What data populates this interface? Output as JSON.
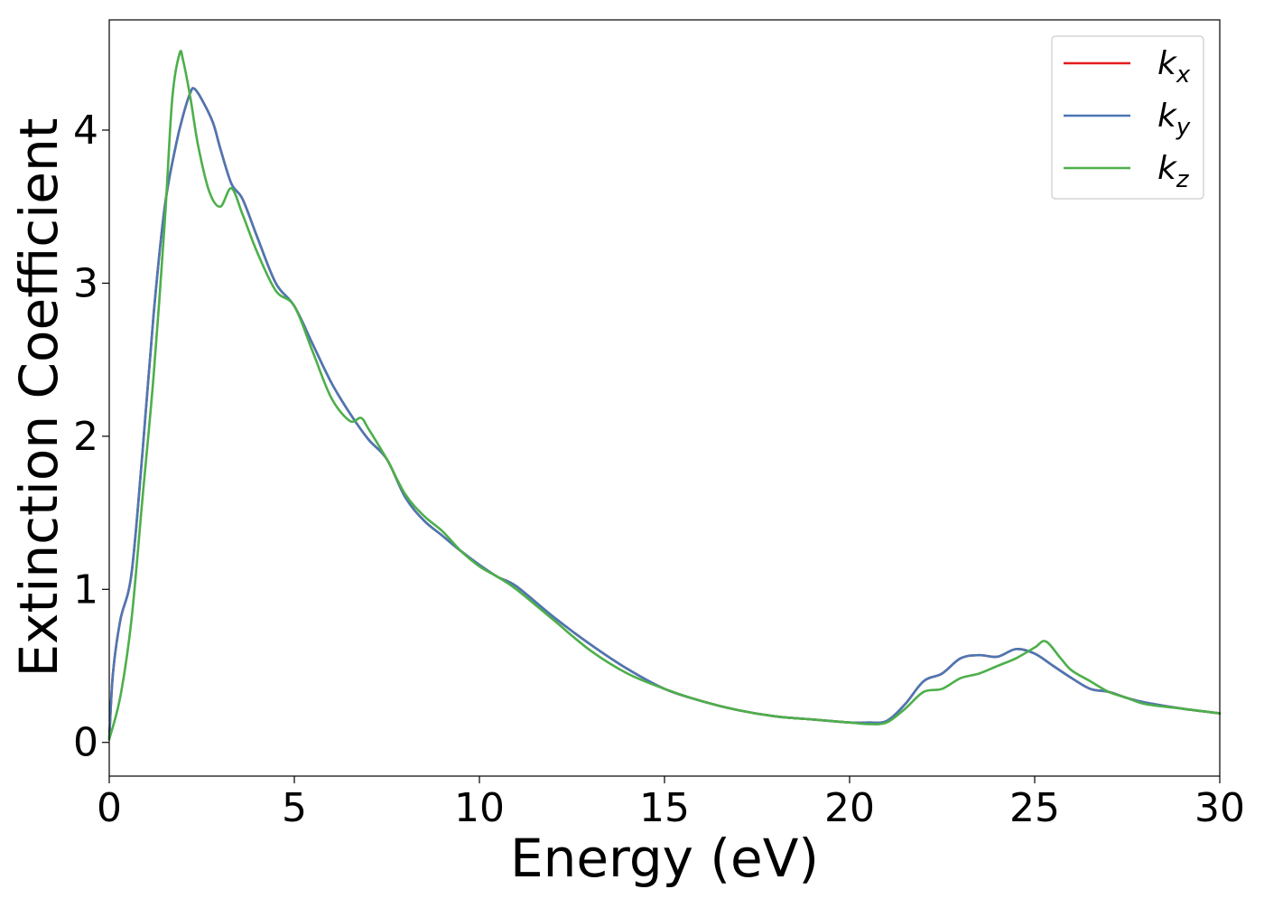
{
  "chart_data": {
    "type": "line",
    "xlabel": "Energy (eV)",
    "ylabel": "Extinction Coefficient",
    "xlim": [
      0,
      30
    ],
    "ylim": [
      -0.22,
      4.72
    ],
    "xticks": [
      0,
      5,
      10,
      15,
      20,
      25,
      30
    ],
    "yticks": [
      0,
      1,
      2,
      3,
      4
    ],
    "grid": false,
    "legend_position": "top-right",
    "series": [
      {
        "name": "k_x",
        "label_base": "k",
        "label_sub": "x",
        "color": "#e41a1c",
        "x": [
          0,
          0.1,
          0.3,
          0.6,
          0.9,
          1.2,
          1.5,
          1.8,
          2.0,
          2.2,
          2.3,
          2.5,
          2.8,
          3.0,
          3.3,
          3.6,
          4.0,
          4.5,
          5.0,
          5.5,
          6.0,
          6.5,
          7.0,
          7.5,
          8.0,
          8.5,
          9.0,
          9.5,
          10.0,
          10.5,
          11.0,
          12.0,
          13.0,
          14.0,
          15.0,
          16.0,
          17.0,
          18.0,
          19.0,
          20.0,
          20.5,
          21.0,
          21.5,
          22.0,
          22.5,
          23.0,
          23.5,
          24.0,
          24.5,
          25.0,
          25.5,
          26.0,
          26.5,
          27.0,
          27.5,
          28.0,
          29.0,
          30.0
        ],
        "y": [
          0.02,
          0.45,
          0.8,
          1.1,
          1.9,
          2.8,
          3.5,
          3.9,
          4.1,
          4.25,
          4.27,
          4.2,
          4.05,
          3.88,
          3.65,
          3.55,
          3.3,
          3.0,
          2.85,
          2.6,
          2.35,
          2.15,
          1.98,
          1.85,
          1.6,
          1.45,
          1.35,
          1.25,
          1.16,
          1.08,
          1.02,
          0.82,
          0.64,
          0.48,
          0.35,
          0.27,
          0.21,
          0.17,
          0.15,
          0.13,
          0.13,
          0.14,
          0.25,
          0.4,
          0.45,
          0.55,
          0.57,
          0.56,
          0.61,
          0.58,
          0.5,
          0.42,
          0.35,
          0.33,
          0.29,
          0.26,
          0.22,
          0.19
        ]
      },
      {
        "name": "k_y",
        "label_base": "k",
        "label_sub": "y",
        "color": "#4a78b4",
        "x": [
          0,
          0.1,
          0.3,
          0.6,
          0.9,
          1.2,
          1.5,
          1.8,
          2.0,
          2.2,
          2.3,
          2.5,
          2.8,
          3.0,
          3.3,
          3.6,
          4.0,
          4.5,
          5.0,
          5.5,
          6.0,
          6.5,
          7.0,
          7.5,
          8.0,
          8.5,
          9.0,
          9.5,
          10.0,
          10.5,
          11.0,
          12.0,
          13.0,
          14.0,
          15.0,
          16.0,
          17.0,
          18.0,
          19.0,
          20.0,
          20.5,
          21.0,
          21.5,
          22.0,
          22.5,
          23.0,
          23.5,
          24.0,
          24.5,
          25.0,
          25.5,
          26.0,
          26.5,
          27.0,
          27.5,
          28.0,
          29.0,
          30.0
        ],
        "y": [
          0.02,
          0.45,
          0.8,
          1.1,
          1.9,
          2.8,
          3.5,
          3.9,
          4.1,
          4.25,
          4.27,
          4.2,
          4.05,
          3.88,
          3.65,
          3.55,
          3.3,
          3.0,
          2.85,
          2.6,
          2.35,
          2.15,
          1.98,
          1.85,
          1.6,
          1.45,
          1.35,
          1.25,
          1.16,
          1.08,
          1.02,
          0.82,
          0.64,
          0.48,
          0.35,
          0.27,
          0.21,
          0.17,
          0.15,
          0.13,
          0.13,
          0.14,
          0.25,
          0.4,
          0.45,
          0.55,
          0.57,
          0.56,
          0.61,
          0.58,
          0.5,
          0.42,
          0.35,
          0.33,
          0.29,
          0.26,
          0.22,
          0.19
        ]
      },
      {
        "name": "k_z",
        "label_base": "k",
        "label_sub": "z",
        "color": "#4daf4a",
        "x": [
          0,
          0.3,
          0.6,
          0.9,
          1.2,
          1.5,
          1.7,
          1.9,
          2.0,
          2.2,
          2.4,
          2.7,
          3.0,
          3.3,
          3.6,
          4.0,
          4.5,
          5.0,
          5.5,
          6.0,
          6.5,
          6.8,
          7.0,
          7.5,
          8.0,
          8.5,
          9.0,
          9.5,
          10.0,
          10.5,
          11.0,
          12.0,
          13.0,
          14.0,
          15.0,
          16.0,
          17.0,
          18.0,
          19.0,
          20.0,
          20.5,
          21.0,
          21.5,
          22.0,
          22.5,
          23.0,
          23.5,
          24.0,
          24.5,
          25.0,
          25.3,
          25.7,
          26.0,
          26.5,
          27.0,
          27.5,
          28.0,
          29.0,
          30.0
        ],
        "y": [
          0.02,
          0.3,
          0.8,
          1.6,
          2.4,
          3.4,
          4.2,
          4.5,
          4.45,
          4.2,
          3.9,
          3.6,
          3.5,
          3.62,
          3.45,
          3.2,
          2.95,
          2.85,
          2.55,
          2.25,
          2.1,
          2.12,
          2.05,
          1.85,
          1.62,
          1.48,
          1.38,
          1.25,
          1.15,
          1.08,
          1.0,
          0.8,
          0.6,
          0.45,
          0.35,
          0.27,
          0.21,
          0.17,
          0.15,
          0.13,
          0.12,
          0.13,
          0.22,
          0.33,
          0.35,
          0.42,
          0.45,
          0.5,
          0.55,
          0.62,
          0.66,
          0.55,
          0.47,
          0.4,
          0.33,
          0.29,
          0.25,
          0.22,
          0.19
        ]
      }
    ]
  }
}
